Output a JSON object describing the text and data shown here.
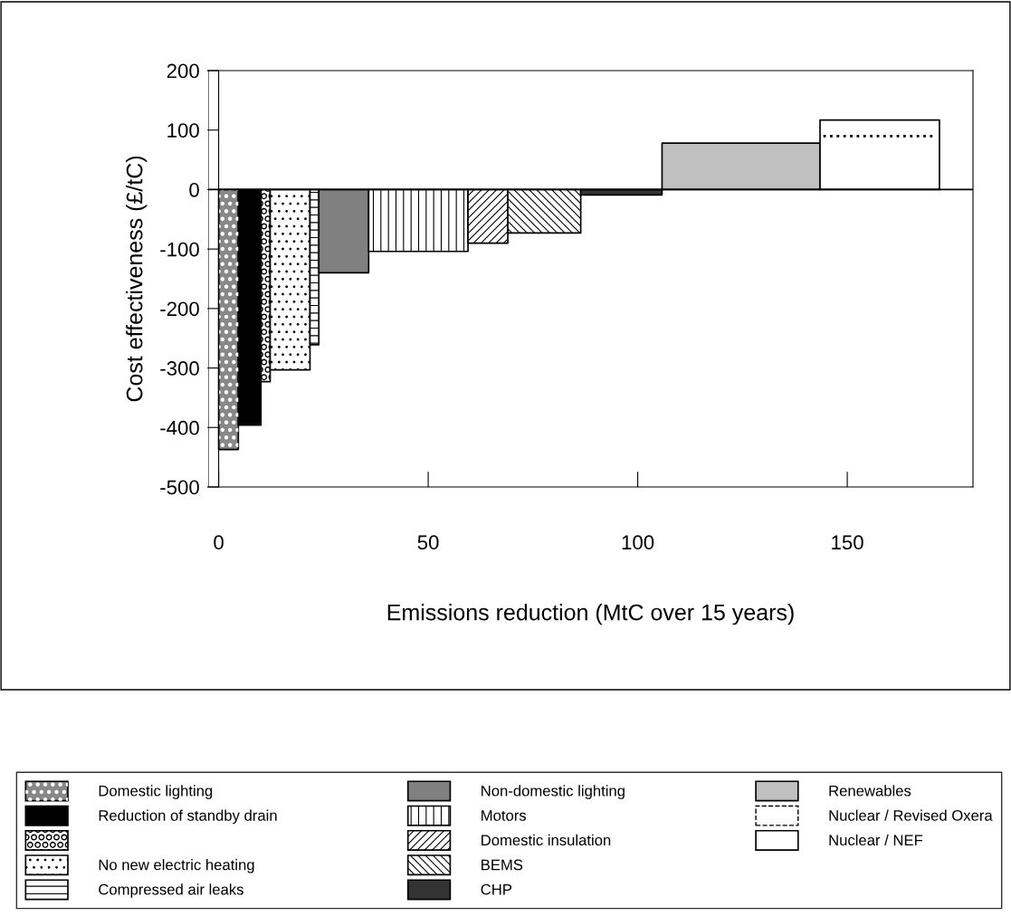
{
  "chart_data": {
    "type": "area",
    "xlabel": "Emissions reduction (MtC over 15 years)",
    "ylabel": "Cost effectiveness (£/tC)",
    "xlim": [
      -2.5,
      180
    ],
    "xticks": [
      0,
      50,
      100,
      150
    ],
    "ylim": [
      -500,
      200
    ],
    "yticks": [
      -500,
      -400,
      -300,
      -200,
      -100,
      0,
      100,
      200
    ],
    "grid": false,
    "legend": "bottom",
    "ref_lines": [
      {
        "axis": "y",
        "value": 0,
        "color": "#000000"
      }
    ],
    "series": [
      {
        "name": "Domestic lighting",
        "color": "#888888",
        "x": [
          0,
          4.7
        ],
        "values": [
          -437,
          -437
        ]
      },
      {
        "name": "Reduction of standby drain",
        "color": "#000000",
        "x": [
          4.7,
          10.1
        ],
        "values": [
          -396,
          -396
        ]
      },
      {
        "color": "#ffffff",
        "x": [
          10.1,
          12.3
        ],
        "values": [
          -323,
          -323
        ]
      },
      {
        "name": "No new electric heating",
        "color": "#ffffff",
        "x": [
          12.3,
          21.8
        ],
        "values": [
          -303,
          -303
        ]
      },
      {
        "name": "Compressed air leaks",
        "color": "#ffffff",
        "x": [
          21.8,
          23.9
        ],
        "values": [
          -261,
          -261
        ]
      },
      {
        "name": "Non-domestic lighting",
        "color": "#808080",
        "x": [
          23.9,
          35.8
        ],
        "values": [
          -140,
          -140
        ]
      },
      {
        "name": "Motors",
        "color": "#ffffff",
        "x": [
          35.8,
          59.5
        ],
        "values": [
          -104,
          -104
        ]
      },
      {
        "name": "Domestic insulation",
        "color": "#ffffff",
        "x": [
          59.5,
          69.0
        ],
        "values": [
          -90,
          -90
        ]
      },
      {
        "name": "BEMS",
        "color": "#ffffff",
        "x": [
          69.0,
          86.4
        ],
        "values": [
          -73,
          -73
        ]
      },
      {
        "name": "CHP",
        "color": "#333333",
        "x": [
          86.4,
          105.8
        ],
        "values": [
          -9,
          -9
        ]
      },
      {
        "name": "Renewables",
        "color": "#c0c0c0",
        "x": [
          105.8,
          143.5
        ],
        "values": [
          78,
          78
        ]
      },
      {
        "name": "Nuclear / Revised Oxera",
        "type": "line",
        "line_style": "dotted",
        "color": "#000000",
        "x": [
          144.3,
          171.2
        ],
        "values": [
          90,
          90
        ]
      },
      {
        "name": "Nuclear / NEF",
        "color": "#ffffff",
        "x": [
          143.5,
          172.0
        ],
        "values": [
          117,
          117
        ]
      }
    ]
  }
}
